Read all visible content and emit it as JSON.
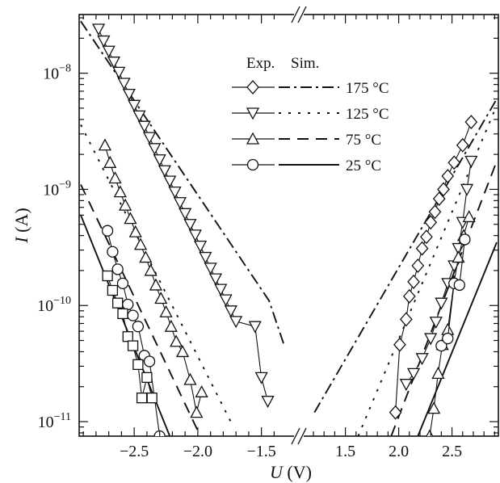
{
  "chart_data": {
    "type": "line",
    "yscale": "log",
    "ylim": [
      7.5e-12,
      3.2e-08
    ],
    "y_ticks": [
      {
        "value": 1e-08,
        "base": "10",
        "exp": "−8"
      },
      {
        "value": 1e-09,
        "base": "10",
        "exp": "−9"
      },
      {
        "value": 1e-10,
        "base": "10",
        "exp": "−10"
      },
      {
        "value": 1e-11,
        "base": "10",
        "exp": "−11"
      }
    ],
    "x_segments": [
      {
        "range": [
          -2.92,
          -1.32
        ],
        "ticks": [
          "−2.5",
          "−2.0",
          "−1.5"
        ],
        "tick_values": [
          -2.5,
          -2.0,
          -1.5
        ]
      },
      {
        "range": [
          1.2,
          2.92
        ],
        "ticks": [
          "1.5",
          "2.0",
          "2.5"
        ],
        "tick_values": [
          1.5,
          2.0,
          2.5
        ]
      }
    ],
    "axis_break": true,
    "xlabel_var": "U",
    "xlabel_unit": " (V)",
    "ylabel_var": "I",
    "ylabel_unit": " (A)",
    "legend": {
      "position": "top-center",
      "header_exp": "Exp.",
      "header_sim": "Sim.",
      "entries": [
        {
          "label": "175 °C",
          "marker": "diamond",
          "dash": "14,5,3,5"
        },
        {
          "label": "125 °C",
          "marker": "triangle-down",
          "dash": "3,9"
        },
        {
          "label": "75 °C",
          "marker": "triangle-up",
          "dash": "14,9"
        },
        {
          "label": "25 °C",
          "marker": "circle",
          "dash": ""
        }
      ]
    },
    "experimental": [
      {
        "name": "175 °C",
        "marker": "diamond",
        "points": [
          [
            1.97,
            1.2e-11
          ],
          [
            2.01,
            4.6e-11
          ],
          [
            2.07,
            7.6e-11
          ],
          [
            2.1,
            1.2e-10
          ],
          [
            2.14,
            1.6e-10
          ],
          [
            2.18,
            2.2e-10
          ],
          [
            2.22,
            3.1e-10
          ],
          [
            2.26,
            3.9e-10
          ],
          [
            2.3,
            5.2e-10
          ],
          [
            2.34,
            6.4e-10
          ],
          [
            2.38,
            8.3e-10
          ],
          [
            2.42,
            1e-09
          ],
          [
            2.46,
            1.3e-09
          ],
          [
            2.52,
            1.7e-09
          ],
          [
            2.6,
            2.4e-09
          ],
          [
            2.68,
            3.8e-09
          ]
        ]
      },
      {
        "name": "125 °C",
        "marker": "triangle-down",
        "points": [
          [
            -2.78,
            2.4e-08
          ],
          [
            -2.74,
            1.9e-08
          ],
          [
            -2.7,
            1.55e-08
          ],
          [
            -2.66,
            1.25e-08
          ],
          [
            -2.62,
            1.02e-08
          ],
          [
            -2.58,
            8.2e-09
          ],
          [
            -2.54,
            6.6e-09
          ],
          [
            -2.5,
            5.3e-09
          ],
          [
            -2.46,
            4.3e-09
          ],
          [
            -2.42,
            3.5e-09
          ],
          [
            -2.38,
            2.8e-09
          ],
          [
            -2.34,
            2.25e-09
          ],
          [
            -2.3,
            1.8e-09
          ],
          [
            -2.26,
            1.45e-09
          ],
          [
            -2.22,
            1.18e-09
          ],
          [
            -2.18,
            9.5e-10
          ],
          [
            -2.14,
            7.7e-10
          ],
          [
            -2.1,
            6.2e-10
          ],
          [
            -2.06,
            5e-10
          ],
          [
            -2.02,
            4.05e-10
          ],
          [
            -1.98,
            3.25e-10
          ],
          [
            -1.94,
            2.6e-10
          ],
          [
            -1.9,
            2.1e-10
          ],
          [
            -1.86,
            1.7e-10
          ],
          [
            -1.82,
            1.38e-10
          ],
          [
            -1.78,
            1.12e-10
          ],
          [
            -1.74,
            9e-11
          ],
          [
            -1.7,
            7.3e-11
          ],
          [
            -1.55,
            6.6e-11
          ],
          [
            -1.5,
            2.4e-11
          ],
          [
            -1.45,
            1.5e-11
          ],
          [
            2.07,
            2.1e-11
          ],
          [
            2.14,
            2.6e-11
          ],
          [
            2.22,
            3.5e-11
          ],
          [
            2.3,
            5.2e-11
          ],
          [
            2.35,
            7.2e-11
          ],
          [
            2.4,
            1.05e-10
          ],
          [
            2.46,
            1.55e-10
          ],
          [
            2.52,
            2.2e-10
          ],
          [
            2.56,
            3.1e-10
          ],
          [
            2.6,
            5.2e-10
          ],
          [
            2.64,
            1e-09
          ],
          [
            2.68,
            1.75e-09
          ]
        ]
      },
      {
        "name": "75 °C",
        "marker": "triangle-up",
        "points": [
          [
            -2.73,
            2.4e-09
          ],
          [
            -2.69,
            1.7e-09
          ],
          [
            -2.65,
            1.25e-09
          ],
          [
            -2.61,
            9.5e-10
          ],
          [
            -2.57,
            7.3e-10
          ],
          [
            -2.53,
            5.6e-10
          ],
          [
            -2.49,
            4.3e-10
          ],
          [
            -2.45,
            3.35e-10
          ],
          [
            -2.41,
            2.6e-10
          ],
          [
            -2.37,
            2e-10
          ],
          [
            -2.33,
            1.5e-10
          ],
          [
            -2.29,
            1.15e-10
          ],
          [
            -2.25,
            8.8e-11
          ],
          [
            -2.21,
            6.6e-11
          ],
          [
            -2.17,
            4.9e-11
          ],
          [
            -2.12,
            4e-11
          ],
          [
            -2.06,
            2.3e-11
          ],
          [
            -2.01,
            1.2e-11
          ],
          [
            -1.97,
            1.8e-11
          ],
          [
            2.29,
            7.5e-12
          ],
          [
            2.33,
            1.3e-11
          ],
          [
            2.37,
            2.6e-11
          ],
          [
            2.41,
            4.6e-11
          ],
          [
            2.46,
            6.2e-11
          ],
          [
            2.52,
            1.6e-10
          ],
          [
            2.56,
            2.6e-10
          ],
          [
            2.61,
            4e-10
          ],
          [
            2.66,
            5.8e-10
          ]
        ]
      },
      {
        "name": "25 °C",
        "marker": "circle",
        "points": [
          [
            -2.71,
            4.4e-10
          ],
          [
            -2.67,
            2.9e-10
          ],
          [
            -2.63,
            2.05e-10
          ],
          [
            -2.59,
            1.55e-10
          ],
          [
            -2.55,
            1.02e-10
          ],
          [
            -2.51,
            8.2e-11
          ],
          [
            -2.47,
            6.6e-11
          ],
          [
            -2.42,
            3.7e-11
          ],
          [
            -2.38,
            3.3e-11
          ],
          [
            -2.3,
            7.5e-12
          ],
          [
            2.4,
            4.5e-11
          ],
          [
            2.46,
            5.2e-11
          ],
          [
            2.52,
            1.55e-10
          ],
          [
            2.57,
            1.5e-10
          ],
          [
            2.62,
            3.7e-10
          ]
        ]
      },
      {
        "name": "",
        "marker": "square",
        "points": [
          [
            -2.71,
            1.8e-10
          ],
          [
            -2.67,
            1.35e-10
          ],
          [
            -2.63,
            1.05e-10
          ],
          [
            -2.59,
            8.5e-11
          ],
          [
            -2.55,
            5.4e-11
          ],
          [
            -2.51,
            4.5e-11
          ],
          [
            -2.47,
            3.1e-11
          ],
          [
            -2.44,
            1.6e-11
          ],
          [
            -2.4,
            2.4e-11
          ],
          [
            -2.36,
            1.6e-11
          ]
        ]
      }
    ],
    "simulated": [
      {
        "name": "175 °C",
        "dash": "14,5,3,5",
        "segments": [
          [
            [
              -2.92,
              2.8e-08
            ],
            [
              -1.44,
              1.1e-10
            ],
            [
              -1.32,
              4.5e-11
            ]
          ],
          [
            [
              1.21,
              1.2e-11
            ],
            [
              2.92,
              6e-09
            ]
          ]
        ]
      },
      {
        "name": "125 °C",
        "dash": "3,9",
        "segments": [
          [
            [
              -2.92,
              3.6e-09
            ],
            [
              -1.72,
              9e-12
            ]
          ],
          [
            [
              1.62,
              7.5e-12
            ],
            [
              2.92,
              5.3e-09
            ]
          ]
        ]
      },
      {
        "name": "75 °C",
        "dash": "14,9",
        "segments": [
          [
            [
              -2.92,
              1.1e-09
            ],
            [
              -1.98,
              7.5e-12
            ]
          ],
          [
            [
              1.93,
              7.5e-12
            ],
            [
              2.92,
              1.75e-09
            ]
          ]
        ]
      },
      {
        "name": "25 °C",
        "dash": "",
        "segments": [
          [
            [
              -2.92,
              6e-10
            ],
            [
              -2.22,
              7.5e-12
            ]
          ],
          [
            [
              2.18,
              7.5e-12
            ],
            [
              2.92,
              3.5e-10
            ]
          ]
        ]
      }
    ]
  }
}
